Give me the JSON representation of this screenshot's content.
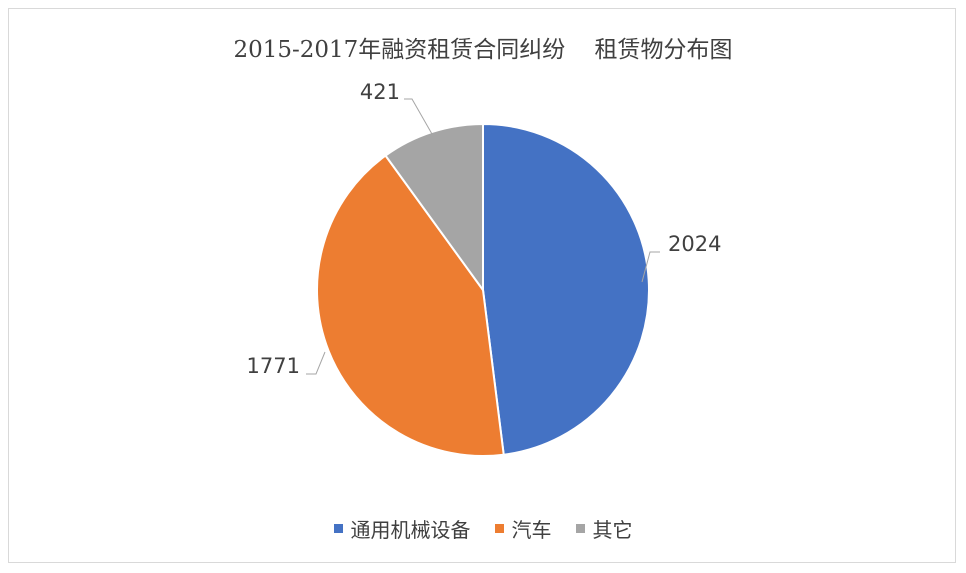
{
  "chart_data": {
    "type": "pie",
    "title": "2015-2017年融资租赁合同纠纷    租赁物分布图",
    "categories": [
      "通用机械设备",
      "汽车",
      "其它"
    ],
    "values": [
      2024,
      1771,
      421
    ],
    "colors": [
      "#4472c4",
      "#ed7d31",
      "#a5a5a5"
    ],
    "data_labels": [
      "2024",
      "1771",
      "421"
    ],
    "legend_position": "bottom",
    "start_angle": "top, clockwise"
  }
}
